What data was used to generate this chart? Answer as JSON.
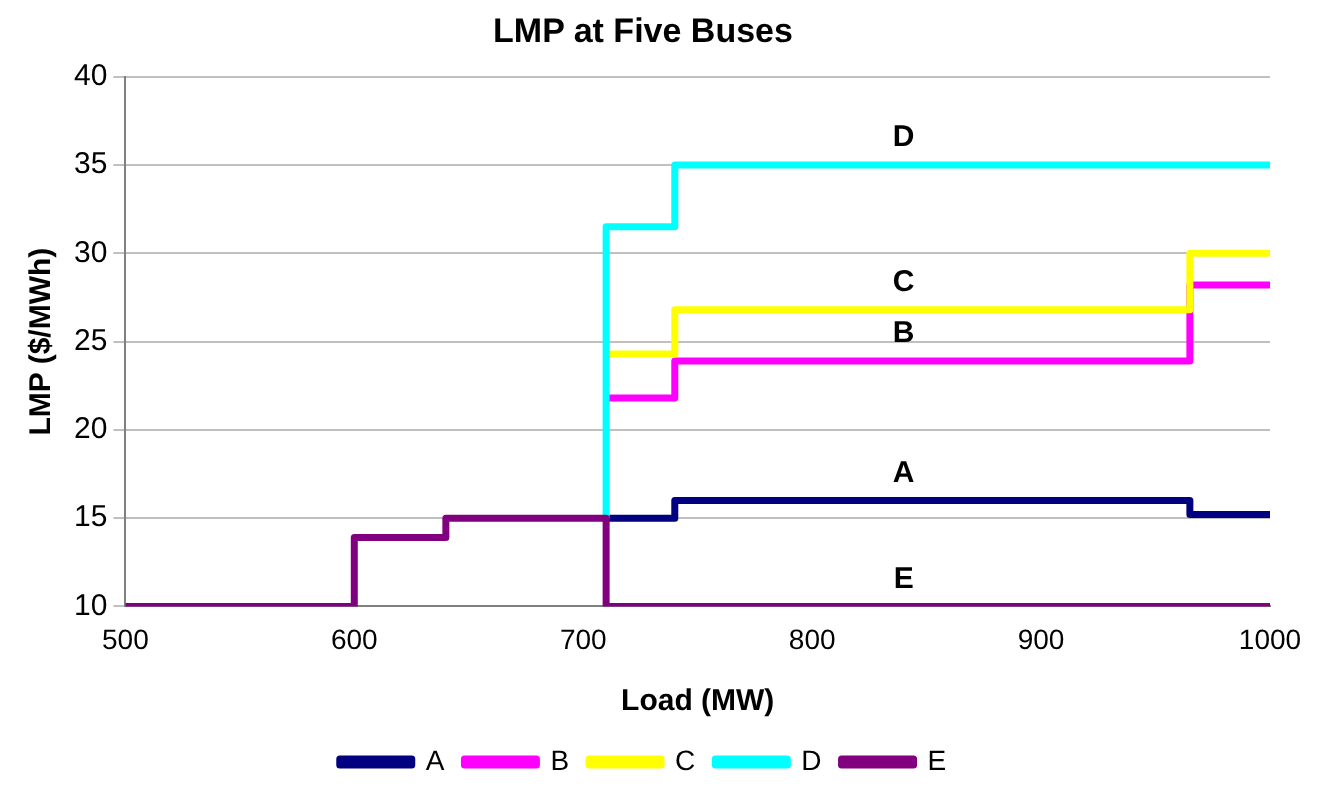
{
  "chart_data": {
    "type": "step",
    "title": "LMP at Five Buses",
    "xlabel": "Load (MW)",
    "ylabel": "LMP ($/MWh)",
    "series": [
      {
        "name": "A",
        "color": "#000080",
        "x": [
          710,
          740,
          965,
          1000
        ],
        "values": [
          15,
          16,
          15.2,
          15.2
        ]
      },
      {
        "name": "B",
        "color": "#ff00ff",
        "x": [
          710,
          740,
          965,
          1000
        ],
        "values": [
          21.8,
          23.9,
          28.2,
          28.2
        ]
      },
      {
        "name": "C",
        "color": "#ffff00",
        "x": [
          710,
          740,
          965,
          1000
        ],
        "values": [
          24.3,
          26.8,
          30,
          30
        ]
      },
      {
        "name": "D",
        "color": "#00ffff",
        "x": [
          710,
          710,
          740,
          1000
        ],
        "values": [
          15,
          31.5,
          35,
          35
        ]
      },
      {
        "name": "E",
        "color": "#800080",
        "x": [
          500,
          600,
          640,
          710,
          1000
        ],
        "values": [
          10,
          13.9,
          15,
          10,
          10
        ]
      }
    ],
    "xlim": [
      500,
      1000
    ],
    "xticks": [
      500,
      600,
      700,
      800,
      900,
      1000
    ],
    "ylim": [
      10,
      40
    ],
    "yticks": [
      10,
      15,
      20,
      25,
      30,
      35,
      40
    ],
    "grid": "y",
    "legend": "bottom",
    "marker": "none",
    "line_style": "solid"
  }
}
